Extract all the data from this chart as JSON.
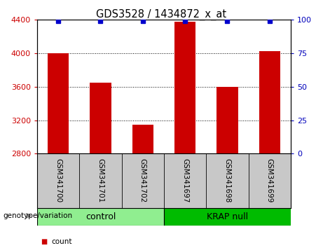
{
  "title": "GDS3528 / 1434872_x_at",
  "samples": [
    "GSM341700",
    "GSM341701",
    "GSM341702",
    "GSM341697",
    "GSM341698",
    "GSM341699"
  ],
  "counts": [
    4000,
    3650,
    3150,
    4380,
    3600,
    4030
  ],
  "percentile_ranks": [
    99,
    99,
    99,
    99,
    99,
    99
  ],
  "ylim_left": [
    2800,
    4400
  ],
  "ylim_right": [
    0,
    100
  ],
  "yticks_left": [
    2800,
    3200,
    3600,
    4000,
    4400
  ],
  "yticks_right": [
    0,
    25,
    50,
    75,
    100
  ],
  "groups": [
    {
      "label": "control",
      "span": [
        0,
        3
      ],
      "color": "#90EE90"
    },
    {
      "label": "KRAP null",
      "span": [
        3,
        6
      ],
      "color": "#00BB00"
    }
  ],
  "bar_color": "#CC0000",
  "percentile_color": "#0000CC",
  "bar_width": 0.5,
  "xlabel_area_color": "#C8C8C8",
  "left_label_color": "#CC0000",
  "right_label_color": "#0000BB",
  "legend_count_color": "#CC0000",
  "legend_percentile_color": "#0000CC"
}
